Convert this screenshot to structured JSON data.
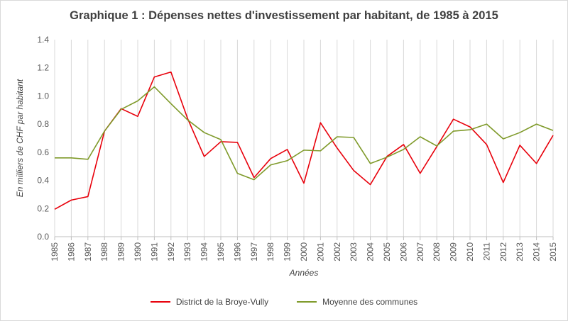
{
  "chart_data": {
    "type": "line",
    "title": "Graphique 1 : Dépenses nettes d'investissement par habitant, de 1985 à 2015",
    "xlabel": "Années",
    "ylabel": "En milliers de CHF par habitant",
    "ylim": [
      0,
      1.4
    ],
    "yticks": [
      "0.0",
      "0.2",
      "0.4",
      "0.6",
      "0.8",
      "1.0",
      "1.2",
      "1.4"
    ],
    "grid": "vertical",
    "legend_position": "bottom",
    "categories": [
      "1985",
      "1986",
      "1987",
      "1988",
      "1989",
      "1990",
      "1991",
      "1992",
      "1993",
      "1994",
      "1995",
      "1996",
      "1997",
      "1998",
      "1999",
      "2000",
      "2001",
      "2002",
      "2003",
      "2004",
      "2005",
      "2006",
      "2007",
      "2008",
      "2009",
      "2010",
      "2011",
      "2012",
      "2013",
      "2014",
      "2015"
    ],
    "series": [
      {
        "name": "District de la Broye-Vully",
        "color": "#e8000b",
        "values": [
          0.195,
          0.26,
          0.285,
          0.75,
          0.91,
          0.855,
          1.135,
          1.17,
          0.84,
          0.57,
          0.675,
          0.67,
          0.42,
          0.555,
          0.62,
          0.38,
          0.81,
          0.63,
          0.47,
          0.37,
          0.57,
          0.655,
          0.45,
          0.64,
          0.835,
          0.78,
          0.655,
          0.385,
          0.65,
          0.52,
          0.72
        ]
      },
      {
        "name": "Moyenne des communes",
        "color": "#7f9a2a",
        "values": [
          0.56,
          0.56,
          0.55,
          0.75,
          0.905,
          0.965,
          1.065,
          0.945,
          0.83,
          0.74,
          0.69,
          0.45,
          0.405,
          0.51,
          0.54,
          0.615,
          0.61,
          0.71,
          0.705,
          0.52,
          0.565,
          0.62,
          0.71,
          0.645,
          0.75,
          0.76,
          0.8,
          0.695,
          0.74,
          0.8,
          0.755
        ]
      }
    ]
  }
}
